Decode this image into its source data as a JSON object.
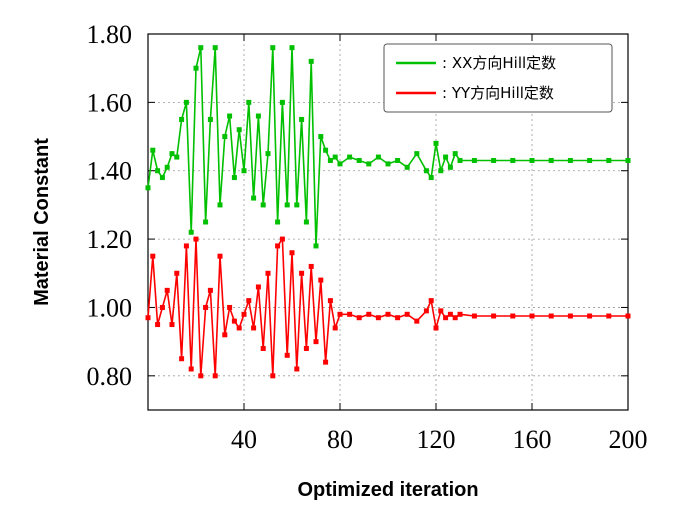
{
  "chart_data": {
    "type": "line",
    "title": "",
    "xlabel": "Optimized iteration",
    "ylabel": "Material Constant",
    "xlim": [
      0,
      200
    ],
    "ylim": [
      0.7,
      1.8
    ],
    "xticks": [
      40,
      80,
      120,
      160,
      200
    ],
    "xtick_labels": [
      "40",
      "80",
      "120",
      "160",
      "200"
    ],
    "yticks": [
      0.8,
      1.0,
      1.2,
      1.4,
      1.6,
      1.8
    ],
    "ytick_labels": [
      "0.80",
      "1.00",
      "1.20",
      "1.40",
      "1.60",
      "1.80"
    ],
    "grid": true,
    "legend_position": "top-right",
    "series": [
      {
        "name": ": XX方向Hill定数",
        "color": "#00c000",
        "marker": "square",
        "x": [
          0,
          2,
          4,
          6,
          8,
          10,
          12,
          14,
          16,
          18,
          20,
          22,
          24,
          26,
          28,
          30,
          32,
          34,
          36,
          38,
          40,
          42,
          44,
          46,
          48,
          50,
          52,
          54,
          56,
          58,
          60,
          62,
          64,
          66,
          68,
          70,
          72,
          74,
          76,
          78,
          80,
          84,
          88,
          92,
          96,
          100,
          104,
          108,
          112,
          116,
          118,
          120,
          122,
          124,
          126,
          128,
          130,
          136,
          144,
          152,
          160,
          168,
          176,
          184,
          192,
          200
        ],
        "y": [
          1.35,
          1.46,
          1.4,
          1.38,
          1.41,
          1.45,
          1.44,
          1.55,
          1.6,
          1.22,
          1.7,
          1.76,
          1.25,
          1.55,
          1.76,
          1.3,
          1.5,
          1.56,
          1.38,
          1.52,
          1.4,
          1.6,
          1.32,
          1.56,
          1.3,
          1.45,
          1.76,
          1.25,
          1.6,
          1.3,
          1.76,
          1.3,
          1.55,
          1.25,
          1.72,
          1.18,
          1.5,
          1.46,
          1.43,
          1.44,
          1.42,
          1.44,
          1.43,
          1.42,
          1.44,
          1.42,
          1.43,
          1.41,
          1.45,
          1.4,
          1.38,
          1.48,
          1.4,
          1.44,
          1.41,
          1.45,
          1.43,
          1.43,
          1.43,
          1.43,
          1.43,
          1.43,
          1.43,
          1.43,
          1.43,
          1.43
        ]
      },
      {
        "name": ": YY方向Hill定数",
        "color": "#ff0000",
        "marker": "square",
        "x": [
          0,
          2,
          4,
          6,
          8,
          10,
          12,
          14,
          16,
          18,
          20,
          22,
          24,
          26,
          28,
          30,
          32,
          34,
          36,
          38,
          40,
          42,
          44,
          46,
          48,
          50,
          52,
          54,
          56,
          58,
          60,
          62,
          64,
          66,
          68,
          70,
          72,
          74,
          76,
          78,
          80,
          84,
          88,
          92,
          96,
          100,
          104,
          108,
          112,
          116,
          118,
          120,
          122,
          124,
          126,
          128,
          130,
          136,
          144,
          152,
          160,
          168,
          176,
          184,
          192,
          200
        ],
        "y": [
          0.97,
          1.15,
          0.95,
          1.0,
          1.05,
          0.95,
          1.1,
          0.85,
          1.18,
          0.82,
          1.2,
          0.8,
          1.0,
          1.05,
          0.8,
          1.15,
          0.92,
          1.0,
          0.96,
          0.94,
          0.98,
          1.02,
          0.94,
          1.06,
          0.88,
          1.1,
          0.8,
          1.18,
          1.2,
          0.86,
          1.16,
          0.82,
          1.1,
          0.88,
          1.12,
          0.9,
          1.08,
          0.84,
          1.02,
          0.94,
          0.98,
          0.98,
          0.97,
          0.98,
          0.97,
          0.98,
          0.97,
          0.98,
          0.96,
          0.99,
          1.02,
          0.94,
          0.99,
          0.97,
          0.98,
          0.97,
          0.98,
          0.975,
          0.975,
          0.975,
          0.975,
          0.975,
          0.975,
          0.975,
          0.975,
          0.975
        ]
      }
    ]
  }
}
